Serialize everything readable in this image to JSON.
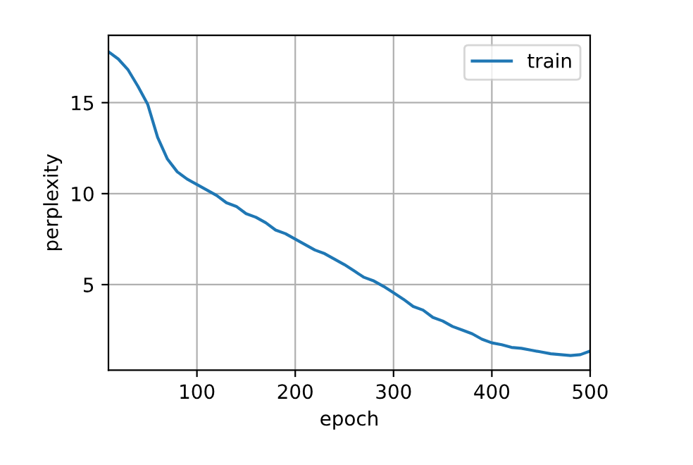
{
  "chart_data": {
    "type": "line",
    "xlabel": "epoch",
    "ylabel": "perplexity",
    "x": [
      10,
      20,
      30,
      40,
      50,
      60,
      70,
      80,
      90,
      100,
      110,
      120,
      130,
      140,
      150,
      160,
      170,
      180,
      190,
      200,
      210,
      220,
      230,
      240,
      250,
      260,
      270,
      280,
      290,
      300,
      310,
      320,
      330,
      340,
      350,
      360,
      370,
      380,
      390,
      400,
      410,
      420,
      430,
      440,
      450,
      460,
      470,
      480,
      490,
      500
    ],
    "series": [
      {
        "name": "train",
        "color": "#1f77b4",
        "values": [
          17.8,
          17.4,
          16.8,
          15.9,
          14.9,
          13.1,
          11.9,
          11.2,
          10.8,
          10.5,
          10.2,
          9.9,
          9.5,
          9.3,
          8.9,
          8.7,
          8.4,
          8.0,
          7.8,
          7.5,
          7.2,
          6.9,
          6.7,
          6.4,
          6.1,
          5.75,
          5.4,
          5.2,
          4.9,
          4.55,
          4.2,
          3.8,
          3.6,
          3.2,
          3.0,
          2.7,
          2.5,
          2.3,
          2.0,
          1.8,
          1.7,
          1.55,
          1.5,
          1.4,
          1.3,
          1.2,
          1.15,
          1.1,
          1.15,
          1.35
        ]
      }
    ],
    "xlim": [
      10,
      500
    ],
    "xticks": [
      100,
      200,
      300,
      400,
      500
    ],
    "ylim": [
      0.3,
      18.7
    ],
    "yticks": [
      5,
      10,
      15
    ],
    "grid": true,
    "legend": "top right",
    "marker": "none",
    "line_style": "solid"
  }
}
